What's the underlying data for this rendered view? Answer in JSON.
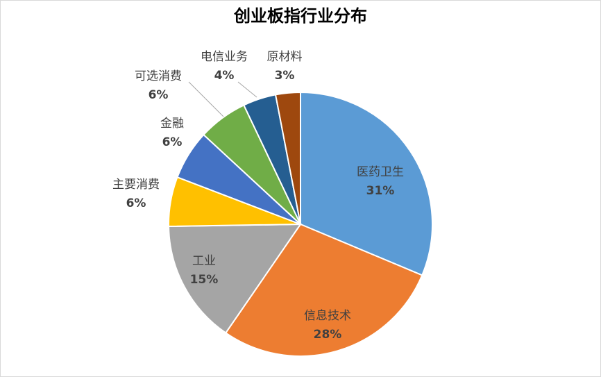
{
  "chart_data": {
    "type": "pie",
    "title": "创业板指行业分布",
    "categories": [
      "医药卫生",
      "信息技术",
      "工业",
      "主要消费",
      "金融",
      "可选消费",
      "电信业务",
      "原材料"
    ],
    "values": [
      31,
      28,
      15,
      6,
      6,
      6,
      4,
      3
    ],
    "value_labels": [
      "31%",
      "28%",
      "15%",
      "6%",
      "6%",
      "6%",
      "4%",
      "3%"
    ],
    "colors": [
      "#5b9bd5",
      "#ed7d31",
      "#a5a5a5",
      "#ffc000",
      "#4472c4",
      "#70ad47",
      "#255e91",
      "#9e480e"
    ]
  }
}
